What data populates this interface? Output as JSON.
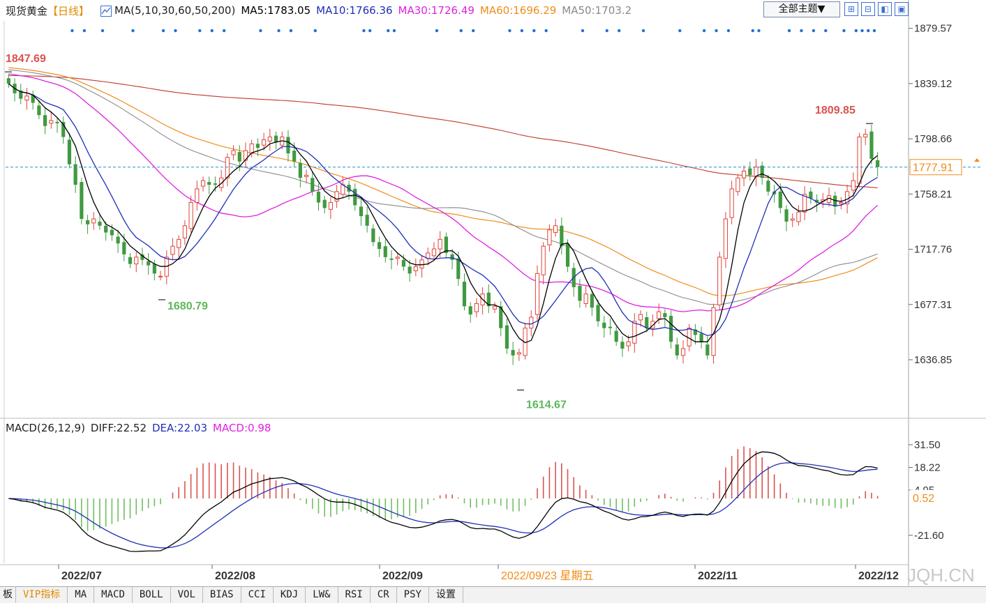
{
  "header": {
    "instrument": "现货黄金",
    "period": "【日线】",
    "ma_params": "MA(5,10,30,60,50,200)",
    "ma_values": [
      {
        "label": "MA5:1783.05",
        "color": "#000000"
      },
      {
        "label": "MA10:1766.36",
        "color": "#1f2fb8"
      },
      {
        "label": "MA30:1726.49",
        "color": "#e020e0"
      },
      {
        "label": "MA60:1696.29",
        "color": "#f08c1a"
      },
      {
        "label": "MA50:1703.2",
        "color": "#8a8a8a"
      }
    ],
    "theme_button": "全部主题▼"
  },
  "macd_header": {
    "title": "MACD(26,12,9)",
    "diff": "DIFF:22.52",
    "dea": "DEA:22.03",
    "macd": "MACD:0.98",
    "colors": {
      "title": "#222222",
      "diff": "#222222",
      "dea": "#1f2fb8",
      "macd": "#e020e0"
    }
  },
  "tabs": [
    "板",
    "VIP指标",
    "MA",
    "MACD",
    "BOLL",
    "VOL",
    "BIAS",
    "CCI",
    "KDJ",
    "LW&",
    "RSI",
    "CR",
    "PSY",
    "设置"
  ],
  "watermark": "JQH.CN",
  "chart_data": [
    {
      "type": "candlestick",
      "title": "现货黄金【日线】",
      "y_ticks": [
        "1879.57",
        "1839.12",
        "1798.66",
        "1758.21",
        "1717.76",
        "1677.31",
        "1636.85"
      ],
      "ylim": [
        1595,
        1885
      ],
      "current_price": "1777.91",
      "annotations": [
        {
          "text": "1847.69",
          "value": 1847.69,
          "color": "#d9534f"
        },
        {
          "text": "1680.79",
          "value": 1680.79,
          "color": "#5cb85c"
        },
        {
          "text": "1614.67",
          "value": 1614.67,
          "color": "#5cb85c"
        },
        {
          "text": "1809.85",
          "value": 1809.85,
          "color": "#d9534f"
        }
      ],
      "x_labels": [
        "2022/07",
        "2022/08",
        "2022/09",
        "2022/09/23 星期五",
        "2022/11",
        "2022/12"
      ],
      "candle_closes": [
        1839,
        1832,
        1828,
        1830,
        1825,
        1816,
        1808,
        1812,
        1810,
        1800,
        1780,
        1765,
        1740,
        1736,
        1740,
        1735,
        1730,
        1728,
        1722,
        1714,
        1707,
        1712,
        1710,
        1706,
        1700,
        1698,
        1712,
        1720,
        1725,
        1735,
        1752,
        1762,
        1768,
        1765,
        1765,
        1770,
        1785,
        1790,
        1782,
        1790,
        1795,
        1792,
        1798,
        1800,
        1796,
        1800,
        1788,
        1782,
        1770,
        1772,
        1760,
        1752,
        1748,
        1752,
        1760,
        1765,
        1760,
        1750,
        1742,
        1735,
        1723,
        1718,
        1712,
        1710,
        1712,
        1705,
        1700,
        1705,
        1710,
        1715,
        1718,
        1725,
        1715,
        1710,
        1696,
        1676,
        1670,
        1678,
        1685,
        1676,
        1676,
        1660,
        1645,
        1640,
        1642,
        1660,
        1668,
        1700,
        1720,
        1732,
        1735,
        1720,
        1705,
        1690,
        1680,
        1685,
        1675,
        1665,
        1660,
        1660,
        1650,
        1645,
        1650,
        1665,
        1670,
        1660,
        1665,
        1672,
        1668,
        1650,
        1640,
        1645,
        1660,
        1655,
        1650,
        1640,
        1675,
        1712,
        1740,
        1762,
        1770,
        1775,
        1772,
        1778,
        1770,
        1760,
        1758,
        1748,
        1738,
        1740,
        1745,
        1758,
        1755,
        1752,
        1754,
        1757,
        1749,
        1752,
        1760,
        1768,
        1800,
        1802,
        1784,
        1778
      ],
      "ma_series": [
        {
          "name": "MA5",
          "color": "#000000"
        },
        {
          "name": "MA10",
          "color": "#1f2fb8"
        },
        {
          "name": "MA30",
          "color": "#e020e0"
        },
        {
          "name": "MA60",
          "color": "#f08c1a"
        },
        {
          "name": "MA50",
          "color": "#8a8a8a"
        },
        {
          "name": "MA200",
          "color": "#c0392b"
        }
      ]
    },
    {
      "type": "macd",
      "title": "MACD(26,12,9)",
      "y_ticks": [
        "31.50",
        "18.22",
        "4.95",
        "-21.60"
      ],
      "ylim": [
        -38,
        36
      ],
      "current_value": "0.52",
      "series": [
        {
          "name": "DIFF",
          "color": "#000000"
        },
        {
          "name": "DEA",
          "color": "#1f2fb8"
        },
        {
          "name": "MACD",
          "color": "#e020e0"
        }
      ]
    }
  ]
}
